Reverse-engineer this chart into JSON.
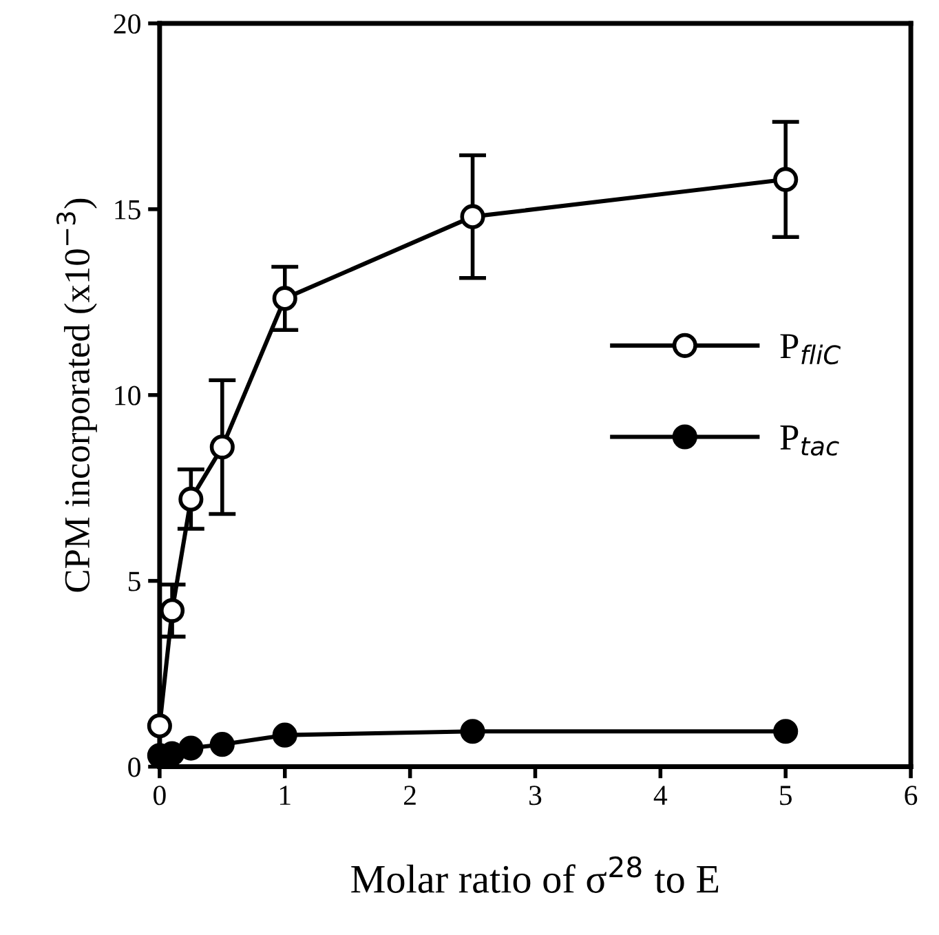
{
  "chart_data": {
    "type": "line",
    "xlabel": "Molar ratio of σ$^{28}$ to E",
    "ylabel": "CPM incorporated (x10$^{−3}$)",
    "xlim": [
      0,
      6
    ],
    "xticks": [
      0,
      1,
      2,
      3,
      4,
      5,
      6
    ],
    "ylim": [
      0,
      20
    ],
    "yticks": [
      0,
      5,
      10,
      15,
      20
    ],
    "x": [
      0,
      0.1,
      0.25,
      0.5,
      1,
      2.5,
      5
    ],
    "marker": "circle",
    "grid": false,
    "legend": "right",
    "series": [
      {
        "name": "P$_{fliC}$",
        "color": "#ffffff",
        "values": [
          1.1,
          4.2,
          7.2,
          8.6,
          12.6,
          14.8,
          15.8
        ],
        "errors": [
          null,
          0.7,
          0.8,
          1.8,
          0.85,
          1.65,
          1.55
        ]
      },
      {
        "name": "P$_{tac}$",
        "color": "#000000",
        "values": [
          0.3,
          0.35,
          0.5,
          0.6,
          0.85,
          0.95,
          0.95
        ]
      }
    ]
  }
}
